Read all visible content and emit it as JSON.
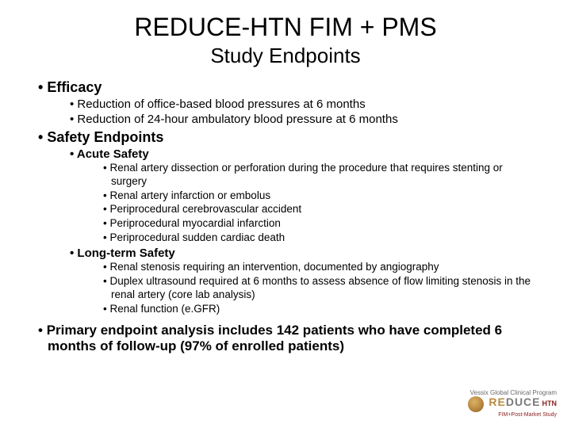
{
  "title": "REDUCE-HTN FIM + PMS",
  "subtitle": "Study Endpoints",
  "efficacy": {
    "heading": "Efficacy",
    "items": [
      "Reduction of office-based blood pressures at 6 months",
      "Reduction of 24-hour ambulatory blood pressure at 6 months"
    ]
  },
  "safety": {
    "heading": "Safety Endpoints",
    "acute": {
      "heading": "Acute Safety",
      "items": [
        "Renal artery dissection or perforation during the procedure that requires stenting or surgery",
        "Renal artery infarction or embolus",
        "Periprocedural cerebrovascular accident",
        "Periprocedural myocardial infarction",
        "Periprocedural sudden cardiac death"
      ]
    },
    "longterm": {
      "heading": "Long-term Safety",
      "items": [
        "Renal stenosis requiring an intervention, documented by angiography",
        "Duplex ultrasound required at 6 months to assess absence of flow limiting stenosis in the renal artery (core lab analysis)",
        "Renal function (e.GFR)"
      ]
    }
  },
  "primary": "Primary endpoint analysis includes 142 patients who have completed 6 months of follow-up (97% of enrolled patients)",
  "logo": {
    "top": "Vessix Global Clinical Program",
    "brand_re": "RE",
    "brand_duce": "DUCE",
    "htn": "HTN",
    "line2": "FIM+Post-Market Study"
  },
  "style": {
    "bg": "#ffffff",
    "text": "#000000",
    "title_fontsize": 32,
    "subtitle_fontsize": 26,
    "l1_fontsize": 18,
    "l2_fontsize": 15,
    "l3_fontsize": 13.5,
    "logo_gold": "#b88a3f",
    "logo_gray": "#7a7a7a",
    "logo_red": "#8a1f1f"
  }
}
